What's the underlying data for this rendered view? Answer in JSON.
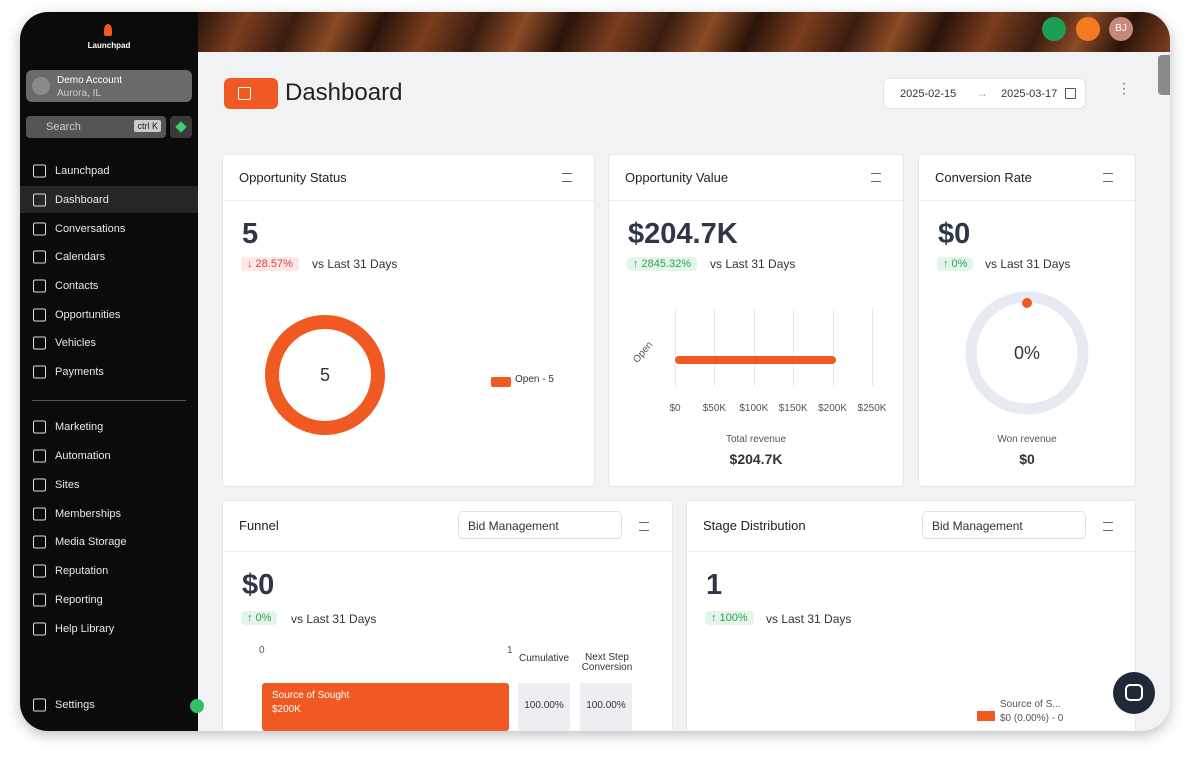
{
  "sidebar": {
    "brand": "Launchpad",
    "account": {
      "name": "Demo Account",
      "location": "Aurora, IL"
    },
    "search": {
      "placeholder": "Search",
      "shortcut": "ctrl K"
    },
    "nav": [
      "Launchpad",
      "Dashboard",
      "Conversations",
      "Calendars",
      "Contacts",
      "Opportunities",
      "Vehicles",
      "Payments"
    ],
    "nav2": [
      "Marketing",
      "Automation",
      "Sites",
      "Memberships",
      "Media Storage",
      "Reputation",
      "Reporting",
      "Help Library"
    ],
    "settings": "Settings"
  },
  "topbar": {
    "avatar": "BJ"
  },
  "header": {
    "title": "Dashboard",
    "date_start": "2025-02-15",
    "date_end": "2025-03-17"
  },
  "cards": {
    "opportunity_status": {
      "title": "Opportunity Status",
      "value": "5",
      "change": "↓ 28.57%",
      "comparison": "vs Last 31 Days",
      "donut_label": "5",
      "legend": "Open - 5"
    },
    "opportunity_value": {
      "title": "Opportunity Value",
      "value": "$204.7K",
      "change": "↑ 2845.32%",
      "comparison": "vs Last 31 Days",
      "chart": {
        "category": "Open",
        "value": 204700,
        "xlim": [
          0,
          250000
        ],
        "xticks": [
          {
            "value": 0,
            "label": "$0"
          },
          {
            "value": 50000,
            "label": "$50K"
          },
          {
            "value": 100000,
            "label": "$100K"
          },
          {
            "value": 150000,
            "label": "$150K"
          },
          {
            "value": 200000,
            "label": "$200K"
          },
          {
            "value": 250000,
            "label": "$250K"
          }
        ]
      },
      "footer_label": "Total revenue",
      "footer_value": "$204.7K"
    },
    "conversion_rate": {
      "title": "Conversion Rate",
      "value": "$0",
      "change": "↑ 0%",
      "comparison": "vs Last 31 Days",
      "gauge_label": "0%",
      "footer_label": "Won revenue",
      "footer_value": "$0"
    },
    "funnel": {
      "title": "Funnel",
      "dropdown": "Bid Management",
      "value": "$0",
      "change": "↑ 0%",
      "comparison": "vs Last 31 Days",
      "axis_start": "0",
      "axis_end": "1",
      "col1": "Cumulative",
      "col2": "Next Step Conversion",
      "stage": "Source of Sought",
      "stage_value": "$200K",
      "cumulative": "100.00%",
      "conversion": "100.00%"
    },
    "stage_distribution": {
      "title": "Stage Distribution",
      "dropdown": "Bid Management",
      "value": "1",
      "change": "↑ 100%",
      "comparison": "vs Last 31 Days",
      "legend_name": "Source of S...",
      "legend_value": "$0 (0.00%) - 0"
    }
  }
}
